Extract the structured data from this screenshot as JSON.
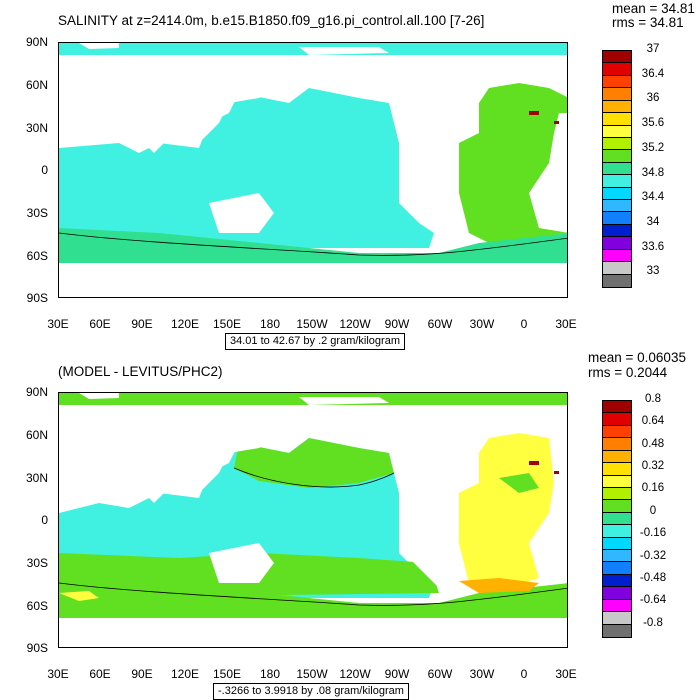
{
  "top": {
    "title": "SALINITY at z=2414.0m, b.e15.B1850.f09_g16.pi_control.all.100 [7-26]",
    "stats_mean": "mean = 34.81",
    "stats_rms": "rms = 34.81",
    "contour_info": "34.01 to 42.67 by .2 gram/kilogram",
    "colorbar": {
      "colors": [
        "#a00000",
        "#e00000",
        "#ff4000",
        "#ff8000",
        "#ffb000",
        "#ffe000",
        "#ffff40",
        "#b0f000",
        "#60e020",
        "#30e090",
        "#40f0e0",
        "#00d8ff",
        "#30b8ff",
        "#1080ff",
        "#0020d0",
        "#8000e0",
        "#ff00ff",
        "#c8c8c8",
        "#707070"
      ],
      "labels": [
        "37",
        "36.4",
        "36",
        "35.6",
        "35.2",
        "34.8",
        "34.4",
        "34",
        "33.6",
        "33"
      ]
    }
  },
  "bottom": {
    "title": "(MODEL - LEVITUS/PHC2)",
    "stats_mean": "mean = 0.06035",
    "stats_rms": "rms = 0.2044",
    "contour_info": "-.3266 to 3.9918 by .08 gram/kilogram",
    "colorbar": {
      "colors": [
        "#a00000",
        "#e00000",
        "#ff4000",
        "#ff8000",
        "#ffb000",
        "#ffe000",
        "#ffff40",
        "#b0f000",
        "#60e020",
        "#30e090",
        "#40f0e0",
        "#00d8ff",
        "#30b8ff",
        "#1080ff",
        "#0020d0",
        "#8000e0",
        "#ff00ff",
        "#c8c8c8",
        "#707070"
      ],
      "labels": [
        "0.8",
        "0.64",
        "0.48",
        "0.32",
        "0.16",
        "0",
        "-0.16",
        "-0.32",
        "-0.48",
        "-0.64",
        "-0.8"
      ]
    }
  },
  "axes": {
    "lat_labels": [
      "90N",
      "60N",
      "30N",
      "0",
      "30S",
      "60S",
      "90S"
    ],
    "lon_labels": [
      "30E",
      "60E",
      "90E",
      "120E",
      "150E",
      "180",
      "150W",
      "120W",
      "90W",
      "60W",
      "30W",
      "0",
      "30E"
    ]
  },
  "colors": {
    "top_pacific": "#40f0e0",
    "top_atlantic": "#60e020",
    "top_southern": "#30e090",
    "bottom_pacific": "#40f0e0",
    "bottom_atlantic": "#ffff40",
    "bottom_southern": "#60e020",
    "land": "#ffffff"
  }
}
